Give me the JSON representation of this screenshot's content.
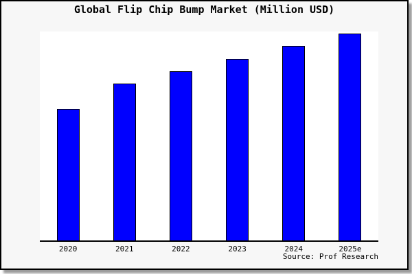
{
  "chart_data": {
    "type": "bar",
    "title": "Global Flip Chip Bump Market (Million USD)",
    "categories": [
      "2020",
      "2021",
      "2022",
      "2023",
      "2024",
      "2025e"
    ],
    "values_relative_height": [
      0.63,
      0.75,
      0.81,
      0.87,
      0.93,
      0.99
    ],
    "xlabel": "",
    "ylabel": "",
    "y_axis_ticks_visible": false,
    "grid": false,
    "legend": false,
    "bar_color": "#0000ff",
    "bar_border_color": "#000000",
    "plot_background": "#ffffff",
    "canvas_background": "#f7f7f7",
    "frame_border_color": "#000000"
  },
  "source": {
    "label": "Source: Prof Research"
  }
}
